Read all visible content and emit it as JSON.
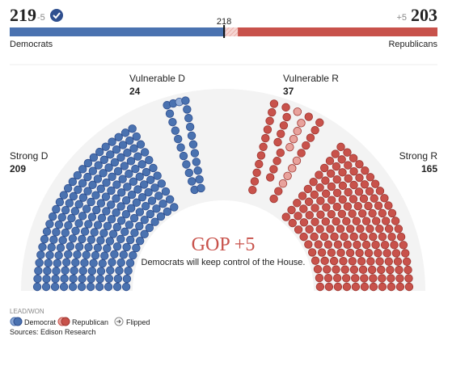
{
  "chart_data": {
    "type": "hemicycle",
    "dem": {
      "seats": 219,
      "change": -5,
      "name": "Democrats"
    },
    "rep": {
      "seats": 203,
      "change": {
        "value": 5,
        "label": "+5"
      },
      "name": "Republicans"
    },
    "majority": 218,
    "xlim": [
      0,
      435
    ],
    "groups": [
      {
        "label": "Strong D",
        "value": 209,
        "party": "D"
      },
      {
        "label": "Vulnerable D",
        "value": 24,
        "party": "D"
      },
      {
        "label": "Vulnerable R",
        "value": 37,
        "party": "R"
      },
      {
        "label": "Strong R",
        "value": 165,
        "party": "R"
      }
    ],
    "headline": "GOP +5",
    "subhead": "Democrats will keep control of the House.",
    "legend_title": "LEAD/WON",
    "legend": [
      "Democrat",
      "Republican",
      "Flipped"
    ],
    "source": "Sources: Edison Research",
    "colors": {
      "D": "#4a72b0",
      "R": "#c8524b"
    }
  }
}
